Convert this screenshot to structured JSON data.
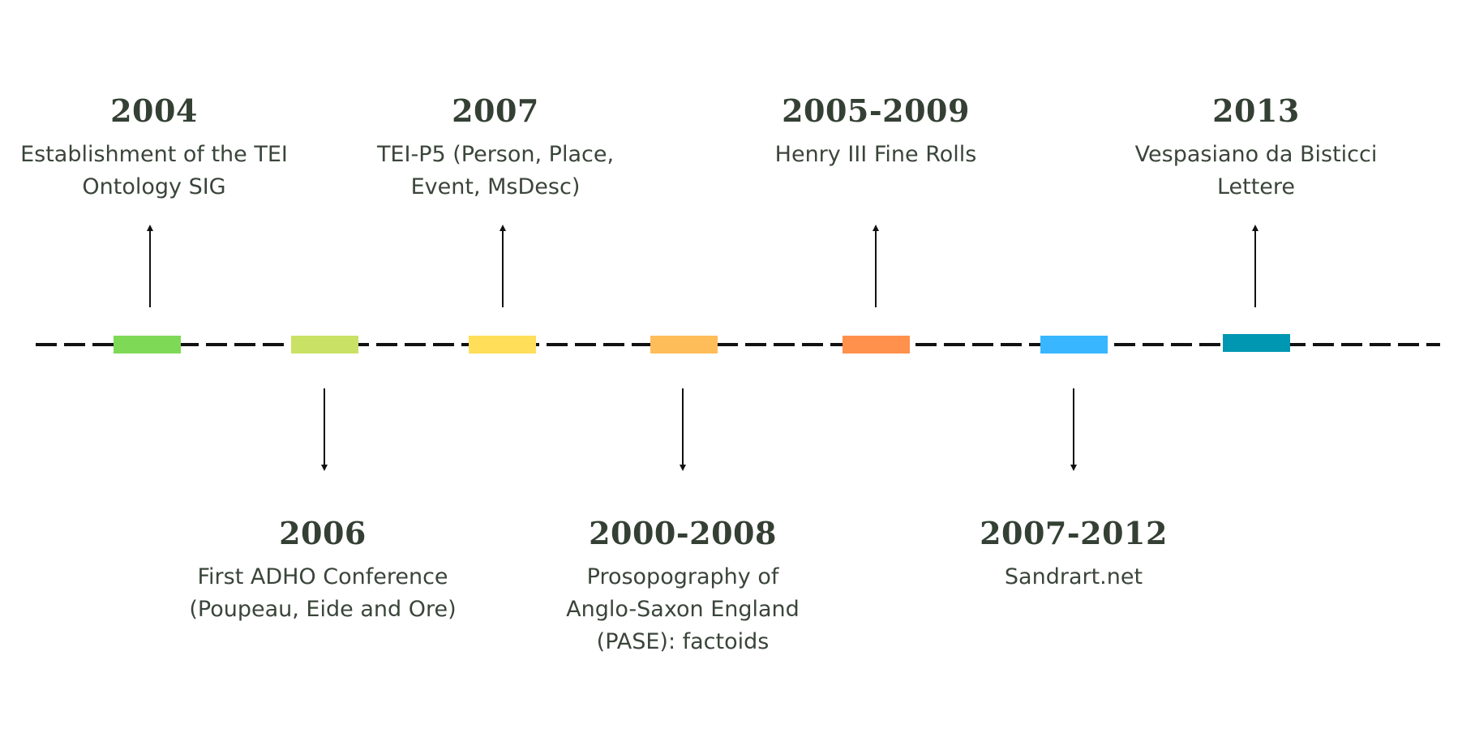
{
  "events": [
    {
      "year": "2004",
      "description": "Establishment of the TEI\nOntology SIG",
      "color": "#7ed957"
    },
    {
      "year": "2006",
      "description": "First ADHO Conference\n(Poupeau, Eide and Ore)",
      "color": "#c9e265"
    },
    {
      "year": "2007",
      "description": "TEI-P5 (Person, Place,\nEvent, MsDesc)",
      "color": "#ffde59"
    },
    {
      "year": "2000-2008",
      "description": "Prosopography of\nAnglo-Saxon England\n(PASE): factoids",
      "color": "#ffbd59"
    },
    {
      "year": "2005-2009",
      "description": "Henry III Fine Rolls",
      "color": "#ff914d"
    },
    {
      "year": "2007-2012",
      "description": "Sandrart.net",
      "color": "#38b6ff"
    },
    {
      "year": "2013",
      "description": "Vespasiano da Bisticci\nLettere",
      "color": "#0097b2"
    }
  ]
}
